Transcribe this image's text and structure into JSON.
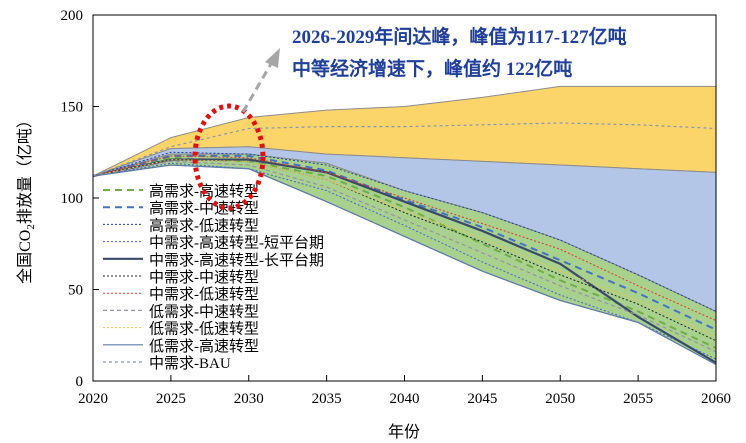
{
  "chart_data": {
    "type": "area",
    "xlabel": "年份",
    "ylabel": "全国CO2排放量（亿吨）",
    "ylabel_parts": {
      "pre": "全国CO",
      "sub": "2",
      "post": "排放量（亿吨）"
    },
    "xlim": [
      2020,
      2060
    ],
    "ylim": [
      0,
      200
    ],
    "xticks": [
      "2020",
      "2025",
      "2030",
      "2035",
      "2040",
      "2045",
      "2050",
      "2055",
      "2060"
    ],
    "yticks": [
      "0",
      "50",
      "100",
      "150",
      "200"
    ],
    "x": [
      2020,
      2025,
      2030,
      2035,
      2040,
      2045,
      2050,
      2055,
      2060
    ],
    "bands": [
      {
        "color": "#fcd56a",
        "upper": [
          112,
          133,
          144,
          148,
          150,
          155,
          161,
          161,
          161
        ],
        "lower": [
          112,
          127,
          128,
          124,
          122,
          120,
          118,
          116,
          114
        ]
      },
      {
        "color": "#b4c6e7",
        "upper": [
          112,
          127,
          128,
          124,
          122,
          120,
          118,
          116,
          114
        ],
        "lower": [
          112,
          124,
          124,
          119,
          104,
          92,
          77,
          58,
          38
        ]
      },
      {
        "color": "#a9d18e",
        "upper": [
          112,
          124,
          124,
          119,
          104,
          92,
          77,
          58,
          38
        ],
        "lower": [
          112,
          118,
          116,
          98,
          79,
          60,
          44,
          32,
          9
        ]
      }
    ],
    "series": [
      {
        "name": "高需求-高速转型",
        "color": "#70ad47",
        "dash": "7,5",
        "width": 2,
        "values": [
          112,
          122,
          120,
          112,
          95,
          75,
          55,
          38,
          18
        ]
      },
      {
        "name": "高需求-中速转型",
        "color": "#4472c4",
        "dash": "7,5",
        "width": 2,
        "values": [
          112,
          123,
          123,
          115,
          99,
          84,
          66,
          48,
          28
        ]
      },
      {
        "name": "高需求-低速转型",
        "color": "#1f3fa0",
        "dash": "2,2",
        "width": 1,
        "values": [
          112,
          125,
          124,
          118,
          104,
          92,
          77,
          58,
          38
        ]
      },
      {
        "name": "中需求-高速转型-短平台期",
        "color": "#4464d0",
        "dash": "2,2",
        "width": 1,
        "values": [
          112,
          119,
          116,
          104,
          85,
          65,
          47,
          32,
          12
        ]
      },
      {
        "name": "中需求-高速转型-长平台期",
        "color": "#3a4a6a",
        "dash": "",
        "width": 2.2,
        "values": [
          112,
          121,
          121,
          114,
          98,
          82,
          64,
          35,
          10
        ]
      },
      {
        "name": "中需求-中速转型",
        "color": "#222222",
        "dash": "2,2",
        "width": 1,
        "values": [
          112,
          121,
          120,
          110,
          92,
          76,
          58,
          42,
          22
        ]
      },
      {
        "name": "中需求-低速转型",
        "color": "#e03a2a",
        "dash": "2,2",
        "width": 1,
        "values": [
          112,
          123,
          122,
          114,
          100,
          86,
          72,
          52,
          33
        ]
      },
      {
        "name": "低需求-中速转型",
        "color": "#9a8fa8",
        "dash": "4,3",
        "width": 1.2,
        "values": [
          112,
          120,
          118,
          106,
          88,
          70,
          52,
          36,
          16
        ]
      },
      {
        "name": "低需求-低速转型",
        "color": "#f2c14e",
        "dash": "2,2",
        "width": 1,
        "values": [
          112,
          121,
          120,
          110,
          93,
          78,
          60,
          44,
          24
        ]
      },
      {
        "name": "低需求-高速转型",
        "color": "#5a7aa8",
        "dash": "",
        "width": 1.2,
        "values": [
          112,
          118,
          116,
          98,
          79,
          60,
          44,
          32,
          9
        ]
      },
      {
        "name": "中需求-BAU",
        "color": "#8497b0",
        "dash": "3,3",
        "width": 1.2,
        "values": [
          112,
          128,
          138,
          139,
          139,
          140,
          141,
          140,
          138
        ]
      }
    ],
    "legend": "left-center",
    "annotations": [
      "2026-2029年间达峰，峰值为117-127亿吨",
      "中等经济增速下，峰值约 122亿吨"
    ],
    "highlight_color": "#e01010"
  }
}
